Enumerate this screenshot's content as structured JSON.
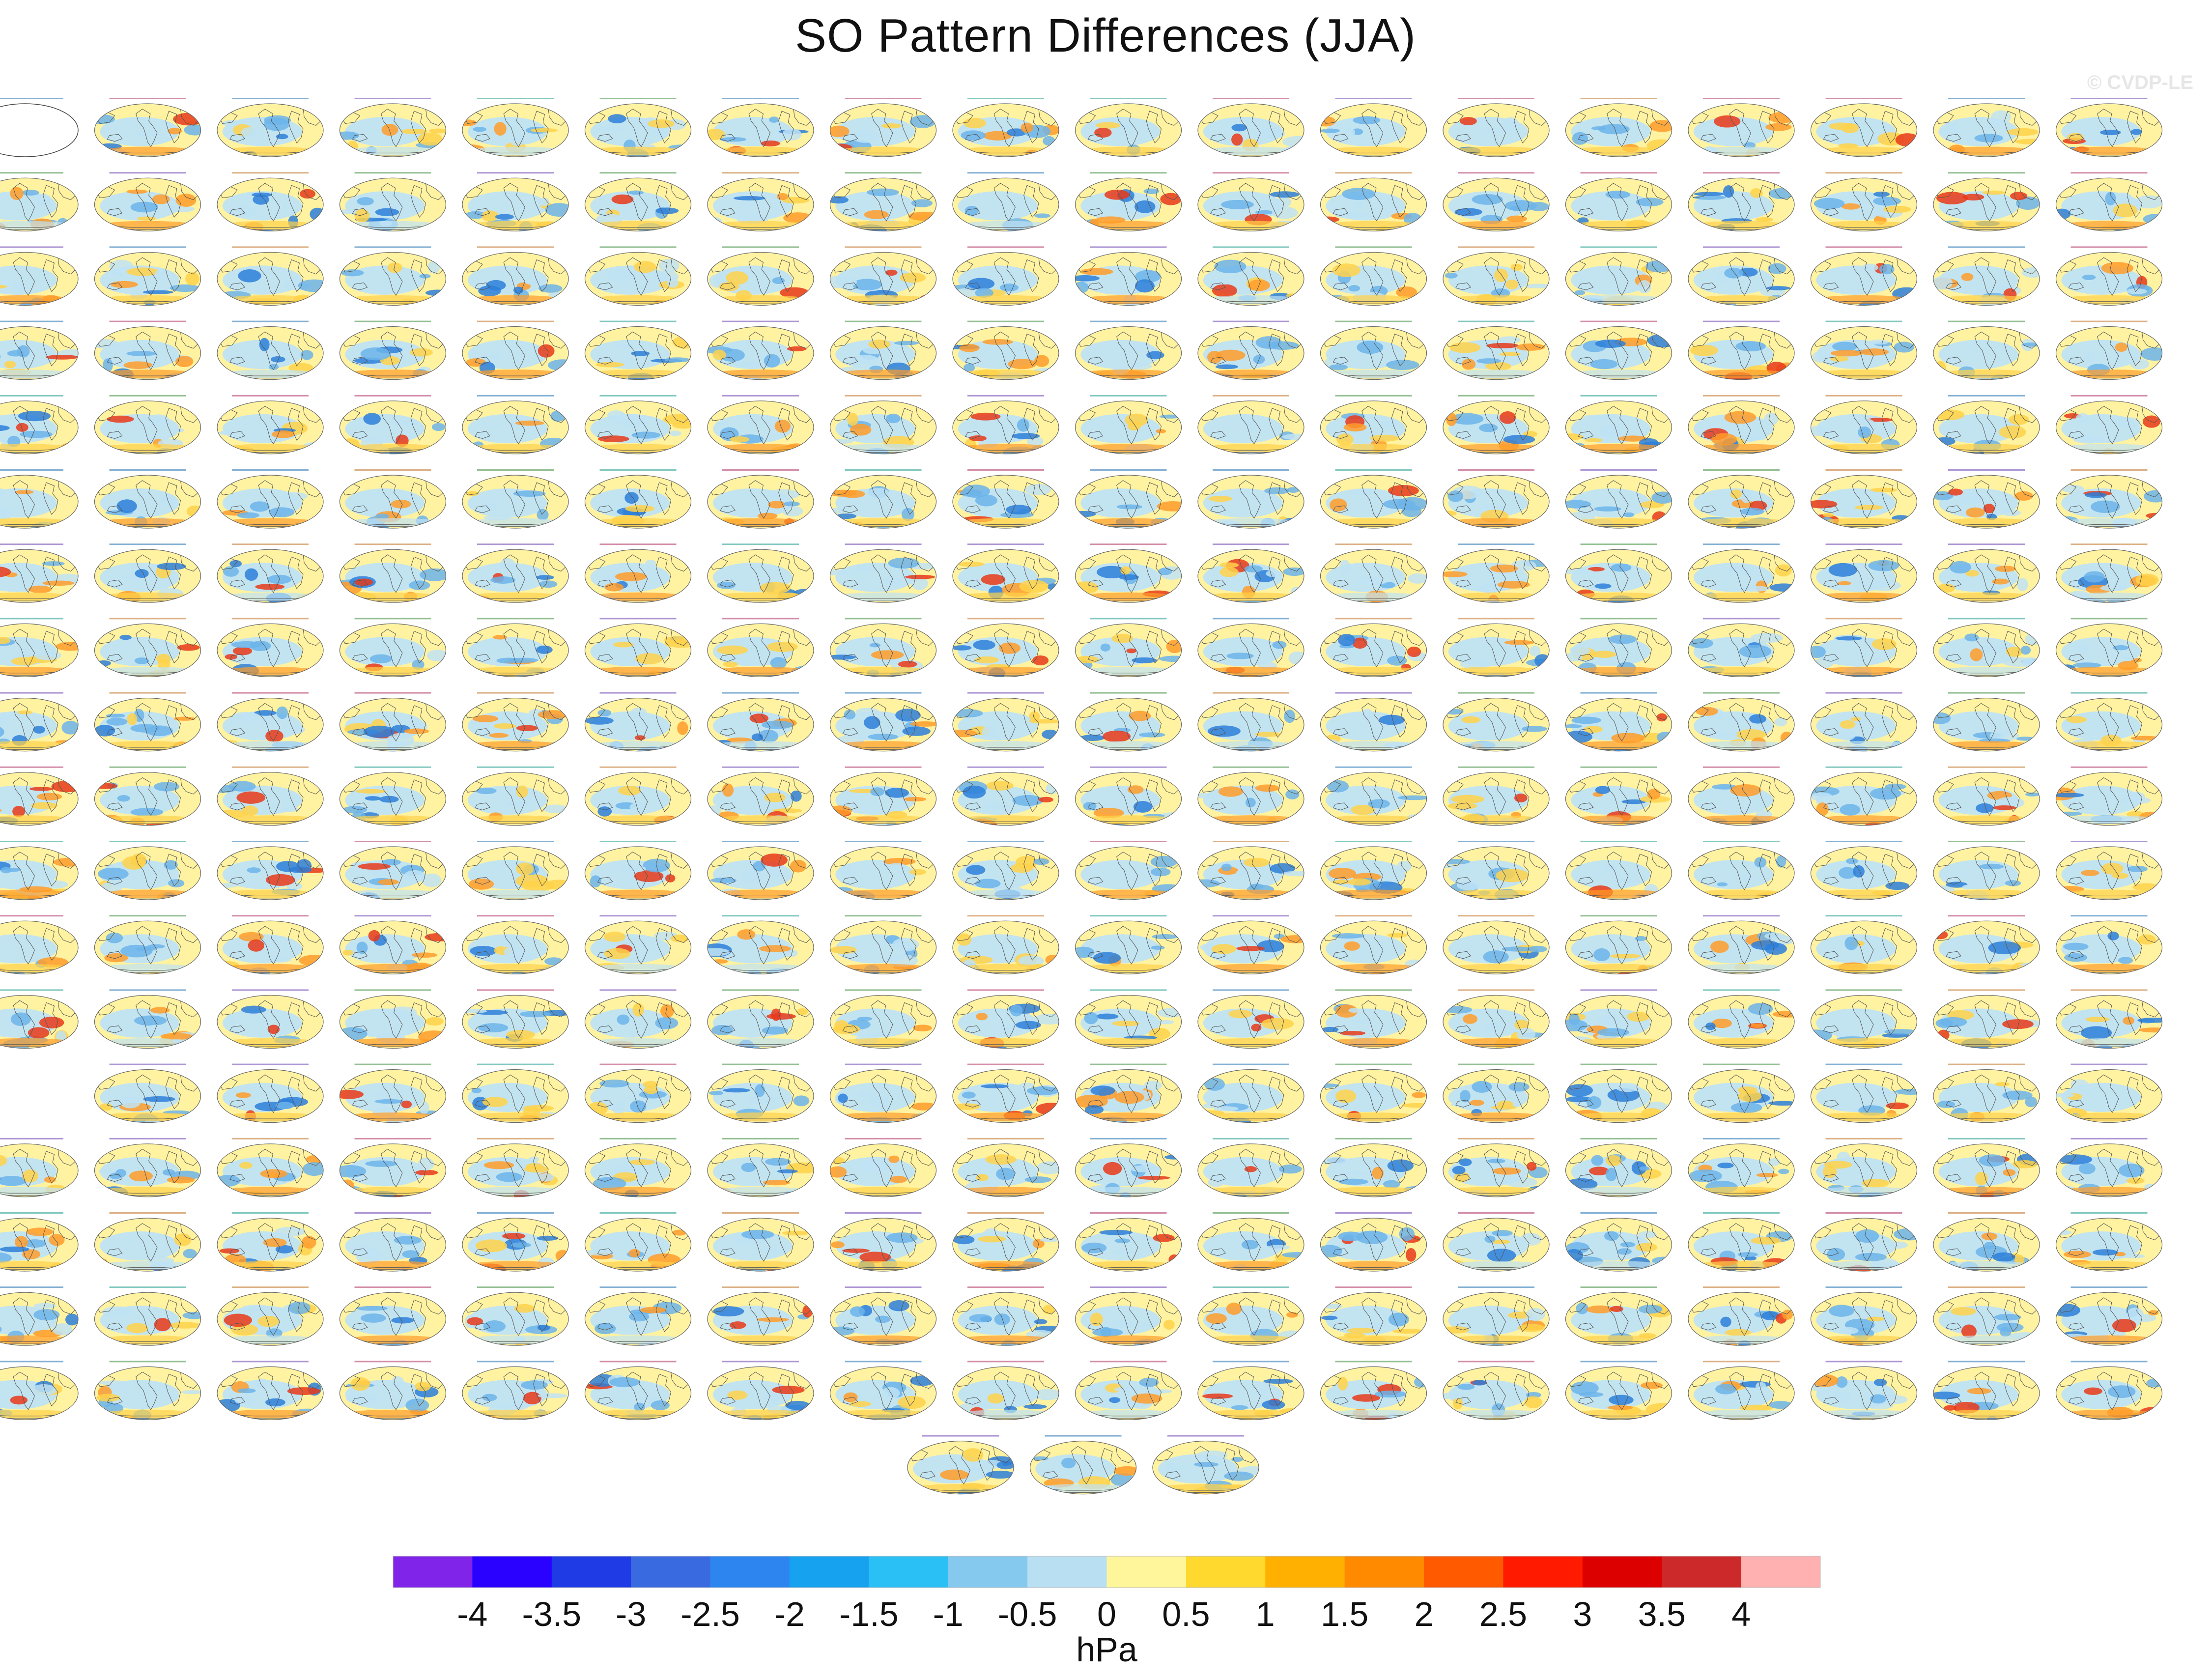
{
  "title": "SO Pattern Differences (JJA)",
  "watermark": "© CVDP-LE",
  "colorbar": {
    "units": "hPa",
    "tick_labels": [
      "-4",
      "-3.5",
      "-3",
      "-2.5",
      "-2",
      "-1.5",
      "-1",
      "-0.5",
      "0",
      "0.5",
      "1",
      "1.5",
      "2",
      "2.5",
      "3",
      "3.5",
      "4"
    ],
    "colors": [
      "#7f24e8",
      "#2a00ff",
      "#1f3be6",
      "#3a6ae0",
      "#2d86f0",
      "#16a2ef",
      "#2bc0f5",
      "#86c9ef",
      "#b8dff2",
      "#fff59a",
      "#ffd92e",
      "#ffb000",
      "#ff8a00",
      "#ff5a00",
      "#ff1a00",
      "#dd0000",
      "#cc2a2a",
      "#ffb0b0"
    ]
  },
  "map_grid": {
    "columns": 18,
    "row_counts": [
      18,
      18,
      18,
      18,
      18,
      18,
      18,
      18,
      18,
      18,
      18,
      18,
      18,
      17,
      18,
      18,
      18,
      18,
      3
    ],
    "first_panel_note": "outline map only",
    "palette": {
      "ocean_light_blue": "#bfe3f5",
      "yellow": "#fff2a0",
      "gold": "#ffd24a",
      "blue": "#6cb4ea",
      "deep_blue": "#2d7fd9",
      "orange": "#ff9c2a",
      "red": "#e83a1a",
      "coast": "#555555"
    },
    "label_colors": [
      "#1f6fb0",
      "#1a9a8a",
      "#6a3fb0",
      "#c07020",
      "#3a8a3a",
      "#b03060"
    ]
  }
}
